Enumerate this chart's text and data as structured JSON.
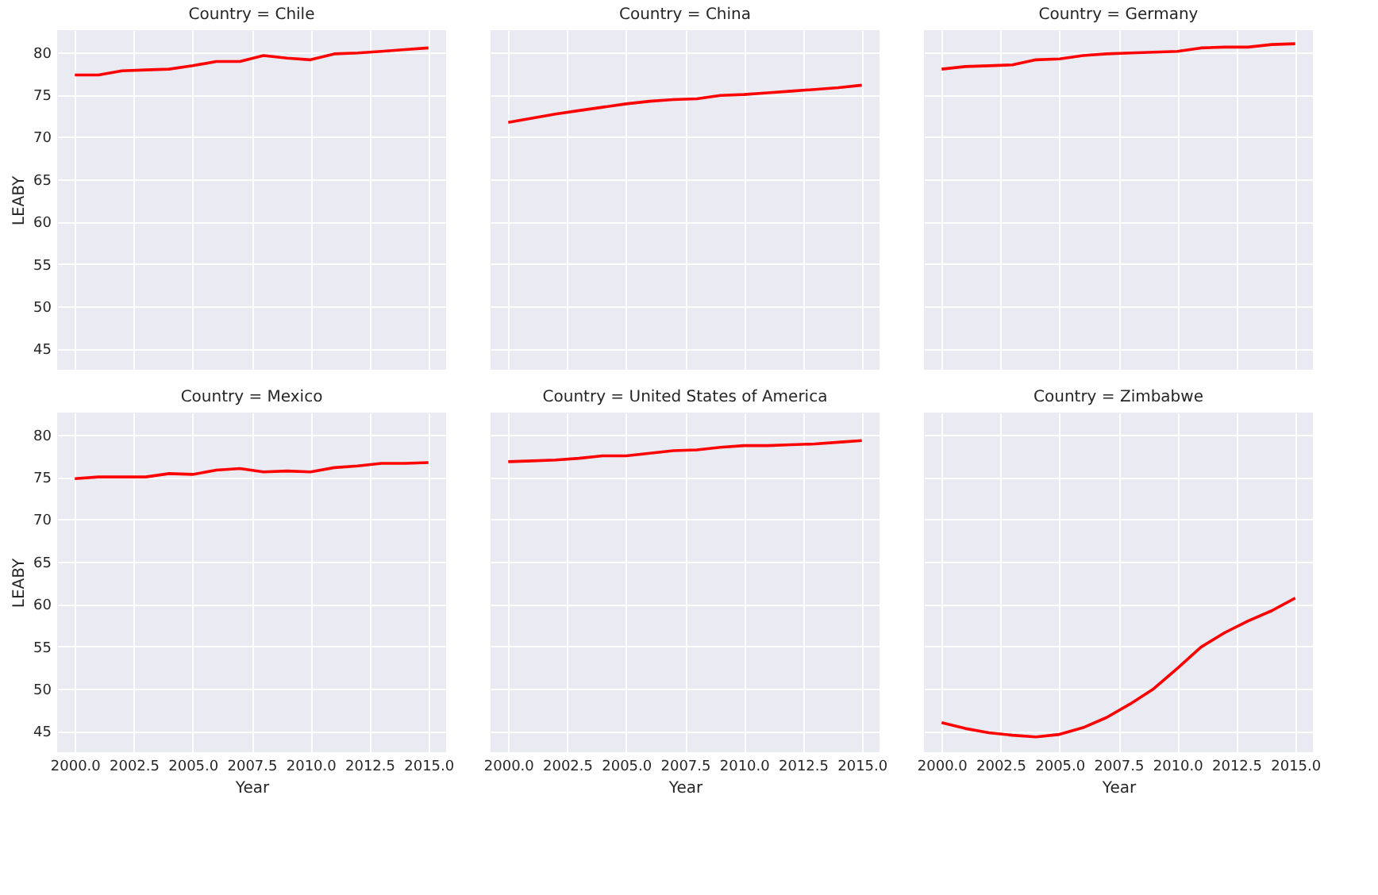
{
  "chart_data": [
    {
      "type": "line",
      "title": "Country = Chile",
      "ylabel": "LEABY",
      "tick_labels": "y",
      "grid": true,
      "xlim": [
        1999.25,
        2015.75
      ],
      "ylim": [
        42.5,
        82.6
      ],
      "xticks": [
        2000,
        2002.5,
        2005,
        2007.5,
        2010,
        2012.5,
        2015
      ],
      "yticks": [
        45,
        50,
        55,
        60,
        65,
        70,
        75,
        80
      ],
      "x": [
        2000,
        2001,
        2002,
        2003,
        2004,
        2005,
        2006,
        2007,
        2008,
        2009,
        2010,
        2011,
        2012,
        2013,
        2014,
        2015
      ],
      "series": [
        {
          "color": "#ff0000",
          "values": [
            77.3,
            77.3,
            77.8,
            77.9,
            78.0,
            78.4,
            78.9,
            78.9,
            79.6,
            79.3,
            79.1,
            79.8,
            79.9,
            80.1,
            80.3,
            80.5
          ]
        }
      ]
    },
    {
      "type": "line",
      "title": "Country = China",
      "tick_labels": false,
      "grid": true,
      "xlim": [
        1999.25,
        2015.75
      ],
      "ylim": [
        42.5,
        82.6
      ],
      "xticks": [
        2000,
        2002.5,
        2005,
        2007.5,
        2010,
        2012.5,
        2015
      ],
      "yticks": [
        45,
        50,
        55,
        60,
        65,
        70,
        75,
        80
      ],
      "x": [
        2000,
        2001,
        2002,
        2003,
        2004,
        2005,
        2006,
        2007,
        2008,
        2009,
        2010,
        2011,
        2012,
        2013,
        2014,
        2015
      ],
      "series": [
        {
          "color": "#ff0000",
          "values": [
            71.7,
            72.2,
            72.7,
            73.1,
            73.5,
            73.9,
            74.2,
            74.4,
            74.5,
            74.9,
            75.0,
            75.2,
            75.4,
            75.6,
            75.8,
            76.1
          ]
        }
      ]
    },
    {
      "type": "line",
      "title": "Country = Germany",
      "tick_labels": false,
      "grid": true,
      "xlim": [
        1999.25,
        2015.75
      ],
      "ylim": [
        42.5,
        82.6
      ],
      "xticks": [
        2000,
        2002.5,
        2005,
        2007.5,
        2010,
        2012.5,
        2015
      ],
      "yticks": [
        45,
        50,
        55,
        60,
        65,
        70,
        75,
        80
      ],
      "x": [
        2000,
        2001,
        2002,
        2003,
        2004,
        2005,
        2006,
        2007,
        2008,
        2009,
        2010,
        2011,
        2012,
        2013,
        2014,
        2015
      ],
      "series": [
        {
          "color": "#ff0000",
          "values": [
            78.0,
            78.3,
            78.4,
            78.5,
            79.1,
            79.2,
            79.6,
            79.8,
            79.9,
            80.0,
            80.1,
            80.5,
            80.6,
            80.6,
            80.9,
            81.0
          ]
        }
      ]
    },
    {
      "type": "line",
      "title": "Country = Mexico",
      "xlabel": "Year",
      "ylabel": "LEABY",
      "grid": true,
      "xlim": [
        1999.25,
        2015.75
      ],
      "ylim": [
        42.5,
        82.6
      ],
      "xticks": [
        {
          "value": 2000,
          "label": "2000.0"
        },
        {
          "value": 2002.5,
          "label": "2002.5"
        },
        {
          "value": 2005,
          "label": "2005.0"
        },
        {
          "value": 2007.5,
          "label": "2007.5"
        },
        {
          "value": 2010,
          "label": "2010.0"
        },
        {
          "value": 2012.5,
          "label": "2012.5"
        },
        {
          "value": 2015,
          "label": "2015.0"
        }
      ],
      "yticks": [
        45,
        50,
        55,
        60,
        65,
        70,
        75,
        80
      ],
      "x": [
        2000,
        2001,
        2002,
        2003,
        2004,
        2005,
        2006,
        2007,
        2008,
        2009,
        2010,
        2011,
        2012,
        2013,
        2014,
        2015
      ],
      "series": [
        {
          "color": "#ff0000",
          "values": [
            74.8,
            75.0,
            75.0,
            75.0,
            75.4,
            75.3,
            75.8,
            76.0,
            75.6,
            75.7,
            75.6,
            76.1,
            76.3,
            76.6,
            76.6,
            76.7
          ]
        }
      ]
    },
    {
      "type": "line",
      "title": "Country = United States of America",
      "xlabel": "Year",
      "tick_labels": "x",
      "grid": true,
      "xlim": [
        1999.25,
        2015.75
      ],
      "ylim": [
        42.5,
        82.6
      ],
      "xticks": [
        {
          "value": 2000,
          "label": "2000.0"
        },
        {
          "value": 2002.5,
          "label": "2002.5"
        },
        {
          "value": 2005,
          "label": "2005.0"
        },
        {
          "value": 2007.5,
          "label": "2007.5"
        },
        {
          "value": 2010,
          "label": "2010.0"
        },
        {
          "value": 2012.5,
          "label": "2012.5"
        },
        {
          "value": 2015,
          "label": "2015.0"
        }
      ],
      "yticks": [
        45,
        50,
        55,
        60,
        65,
        70,
        75,
        80
      ],
      "x": [
        2000,
        2001,
        2002,
        2003,
        2004,
        2005,
        2006,
        2007,
        2008,
        2009,
        2010,
        2011,
        2012,
        2013,
        2014,
        2015
      ],
      "series": [
        {
          "color": "#ff0000",
          "values": [
            76.8,
            76.9,
            77.0,
            77.2,
            77.5,
            77.5,
            77.8,
            78.1,
            78.2,
            78.5,
            78.7,
            78.7,
            78.8,
            78.9,
            79.1,
            79.3
          ]
        }
      ]
    },
    {
      "type": "line",
      "title": "Country = Zimbabwe",
      "xlabel": "Year",
      "tick_labels": "x",
      "grid": true,
      "xlim": [
        1999.25,
        2015.75
      ],
      "ylim": [
        42.5,
        82.6
      ],
      "xticks": [
        {
          "value": 2000,
          "label": "2000.0"
        },
        {
          "value": 2002.5,
          "label": "2002.5"
        },
        {
          "value": 2005,
          "label": "2005.0"
        },
        {
          "value": 2007.5,
          "label": "2007.5"
        },
        {
          "value": 2010,
          "label": "2010.0"
        },
        {
          "value": 2012.5,
          "label": "2012.5"
        },
        {
          "value": 2015,
          "label": "2015.0"
        }
      ],
      "yticks": [
        45,
        50,
        55,
        60,
        65,
        70,
        75,
        80
      ],
      "x": [
        2000,
        2001,
        2002,
        2003,
        2004,
        2005,
        2006,
        2007,
        2008,
        2009,
        2010,
        2011,
        2012,
        2013,
        2014,
        2015
      ],
      "series": [
        {
          "color": "#ff0000",
          "values": [
            46.0,
            45.3,
            44.8,
            44.5,
            44.3,
            44.6,
            45.4,
            46.6,
            48.2,
            50.0,
            52.4,
            54.9,
            56.6,
            58.0,
            59.2,
            60.7
          ]
        }
      ]
    }
  ]
}
